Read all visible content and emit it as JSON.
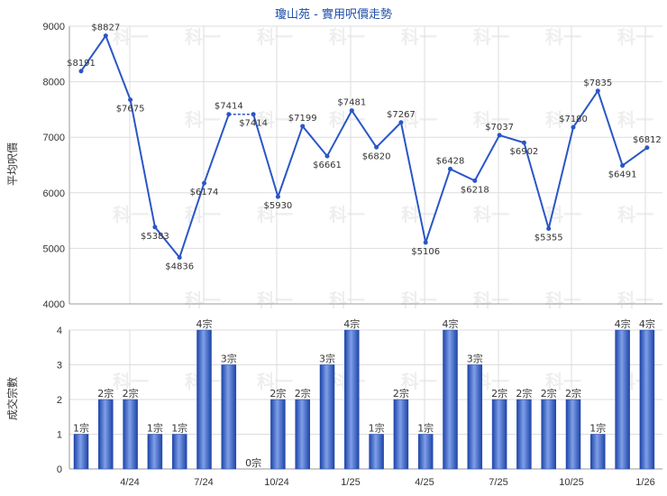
{
  "title": "瓊山苑 - 實用呎價走勢",
  "watermark": "科一",
  "chart_data": [
    {
      "type": "line",
      "name": "price",
      "ylabel": "平均呎價",
      "ylim": [
        4000,
        9000
      ],
      "yticks": [
        9000,
        8000,
        7000,
        6000,
        5000,
        4000
      ],
      "x": [
        0,
        1,
        2,
        3,
        4,
        5,
        6,
        7,
        8,
        9,
        10,
        11,
        12,
        13,
        14,
        15,
        16,
        17,
        18,
        19,
        20,
        21,
        22,
        23,
        24,
        25,
        26,
        27,
        28,
        29
      ],
      "values": [
        8191,
        8827,
        7675,
        5383,
        4836,
        6174,
        7414,
        7414,
        5930,
        7199,
        6661,
        7481,
        6820,
        7267,
        5106,
        6428,
        6218,
        7037,
        6902,
        5355,
        7180,
        7835,
        6491,
        6812
      ],
      "point_x": [
        0,
        1,
        2,
        3,
        4,
        5,
        6,
        7,
        8,
        9,
        10,
        11,
        12,
        13,
        14,
        15,
        16,
        17,
        18,
        19,
        20,
        21,
        22,
        23
      ],
      "labels": [
        "$8191",
        "$8827",
        "$7675",
        "$5383",
        "$4836",
        "$6174",
        "$7414",
        "$7414",
        "$5930",
        "$7199",
        "$6661",
        "$7481",
        "$6820",
        "$7267",
        "$5106",
        "$6428",
        "$6218",
        "$7037",
        "$6902",
        "$5355",
        "$7180",
        "$7835",
        "$6491",
        "$6812"
      ],
      "dashed_segments": [
        [
          6,
          7
        ]
      ],
      "grid": true,
      "color": "#2a56c6"
    },
    {
      "type": "bar",
      "name": "count",
      "ylabel": "成交宗數",
      "ylim": [
        0,
        4
      ],
      "yticks": [
        4,
        3,
        2,
        1,
        0
      ],
      "values": [
        1,
        2,
        2,
        1,
        1,
        4,
        3,
        0,
        2,
        2,
        3,
        4,
        1,
        2,
        1,
        4,
        3,
        2,
        2,
        2,
        2,
        1,
        4,
        4
      ],
      "labels": [
        "1宗",
        "2宗",
        "2宗",
        "1宗",
        "1宗",
        "4宗",
        "3宗",
        "0宗",
        "2宗",
        "2宗",
        "3宗",
        "4宗",
        "1宗",
        "2宗",
        "1宗",
        "4宗",
        "3宗",
        "2宗",
        "2宗",
        "2宗",
        "2宗",
        "1宗",
        "4宗",
        "4宗"
      ],
      "xticks": [
        "4/24",
        "7/24",
        "10/24",
        "1/25",
        "4/25",
        "7/25",
        "10/25",
        "1/26"
      ],
      "grid": true,
      "color": "#2a56c6"
    }
  ]
}
